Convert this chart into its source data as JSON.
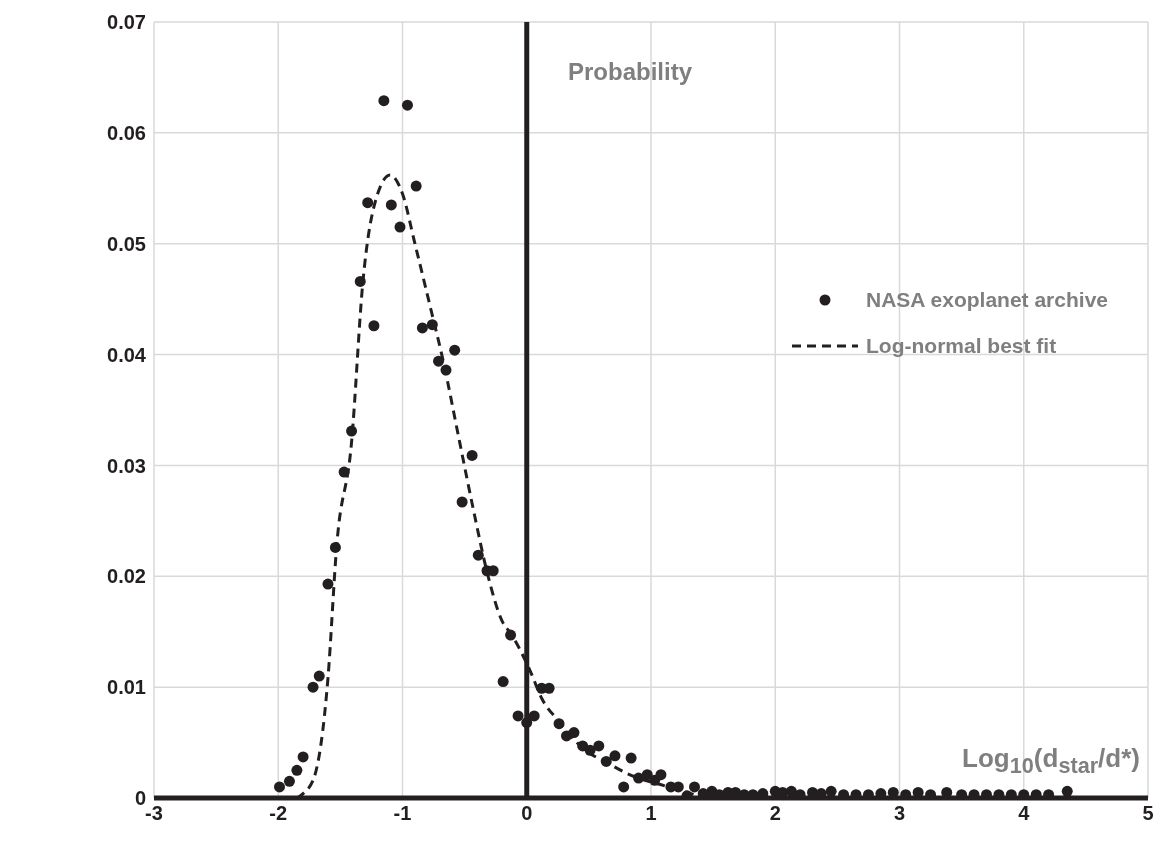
{
  "chart_data": {
    "type": "scatter",
    "ylabel": "Probability",
    "annotations": [
      "Log$_{10}$(d$_{star}$/d*)"
    ],
    "xlim": [
      -3,
      5
    ],
    "xticks": [
      -3,
      -2,
      -1,
      0,
      1,
      2,
      3,
      4,
      5
    ],
    "ylim": [
      0,
      0.07
    ],
    "yticks": [
      0,
      0.01,
      0.02,
      0.03,
      0.04,
      0.05,
      0.06,
      0.07
    ],
    "grid": true,
    "legend": "right",
    "ref_lines": [
      {
        "axis": "x",
        "value": 0,
        "color": "#231f20"
      }
    ],
    "series": [
      {
        "name": "NASA exoplanet archive",
        "type": "scatter",
        "marker": "circle",
        "color": "#231f20",
        "x": [
          -1.99,
          -1.91,
          -1.85,
          -1.8,
          -1.72,
          -1.67,
          -1.6,
          -1.54,
          -1.47,
          -1.41,
          -1.34,
          -1.28,
          -1.23,
          -1.15,
          -1.09,
          -1.02,
          -0.96,
          -0.89,
          -0.84,
          -0.76,
          -0.71,
          -0.65,
          -0.58,
          -0.52,
          -0.44,
          -0.39,
          -0.32,
          -0.27,
          -0.19,
          -0.13,
          -0.07,
          0,
          0.06,
          0.12,
          0.18,
          0.26,
          0.32,
          0.38,
          0.45,
          0.51,
          0.58,
          0.64,
          0.71,
          0.78,
          0.84,
          0.9,
          0.97,
          1.03,
          1.08,
          1.16,
          1.22,
          1.29,
          1.35,
          1.42,
          1.49,
          1.55,
          1.62,
          1.68,
          1.75,
          1.82,
          1.9,
          2.0,
          2.06,
          2.13,
          2.2,
          2.3,
          2.37,
          2.45,
          2.55,
          2.65,
          2.75,
          2.85,
          2.95,
          3.05,
          3.15,
          3.25,
          3.38,
          3.5,
          3.6,
          3.7,
          3.8,
          3.9,
          4.0,
          4.1,
          4.2,
          4.35
        ],
        "values": [
          0.001,
          0.0015,
          0.0025,
          0.0037,
          0.01,
          0.011,
          0.0193,
          0.0226,
          0.0294,
          0.0331,
          0.0466,
          0.0537,
          0.0426,
          0.0629,
          0.0535,
          0.0515,
          0.0625,
          0.0552,
          0.0424,
          0.0427,
          0.0394,
          0.0386,
          0.0404,
          0.0267,
          0.0309,
          0.0219,
          0.0205,
          0.0205,
          0.0105,
          0.0147,
          0.0074,
          0.0068,
          0.0074,
          0.0099,
          0.0099,
          0.0067,
          0.0056,
          0.0059,
          0.0047,
          0.0043,
          0.0047,
          0.0033,
          0.0038,
          0.001,
          0.0036,
          0.0018,
          0.0021,
          0.0016,
          0.0021,
          0.001,
          0.001,
          0.0002,
          0.001,
          0.0004,
          0.0006,
          0.0003,
          0.0005,
          0.0005,
          0.0003,
          0.0003,
          0.0004,
          0.0006,
          0.0005,
          0.0006,
          0.0003,
          0.0005,
          0.0004,
          0.0006,
          0.0003,
          0.0003,
          0.0003,
          0.0004,
          0.0005,
          0.0003,
          0.0005,
          0.0003,
          0.0005,
          0.0003,
          0.0003,
          0.0003,
          0.0003,
          0.0003,
          0.0003,
          0.0003,
          0.0003,
          0.0006
        ]
      },
      {
        "name": "Log-normal best fit",
        "type": "line",
        "line_style": "dashed",
        "marker": "none",
        "color": "#231f20",
        "x": [
          -1.85,
          -1.8,
          -1.71,
          -1.6,
          -1.53,
          -1.41,
          -1.32,
          -1.2,
          -1.1,
          -1.0,
          -0.9,
          -0.77,
          -0.67,
          -0.54,
          -0.42,
          -0.32,
          -0.2,
          -0.12,
          0.03,
          0.12,
          0.26,
          0.45,
          0.66,
          0.81,
          1.14,
          1.35
        ],
        "values": [
          0,
          0.0004,
          0.0019,
          0.0108,
          0.0227,
          0.0321,
          0.0464,
          0.0545,
          0.0562,
          0.0545,
          0.05,
          0.044,
          0.0393,
          0.0321,
          0.0255,
          0.0204,
          0.016,
          0.0147,
          0.0114,
          0.009,
          0.0069,
          0.0045,
          0.0031,
          0.0022,
          0.001,
          0.0003
        ]
      }
    ]
  }
}
